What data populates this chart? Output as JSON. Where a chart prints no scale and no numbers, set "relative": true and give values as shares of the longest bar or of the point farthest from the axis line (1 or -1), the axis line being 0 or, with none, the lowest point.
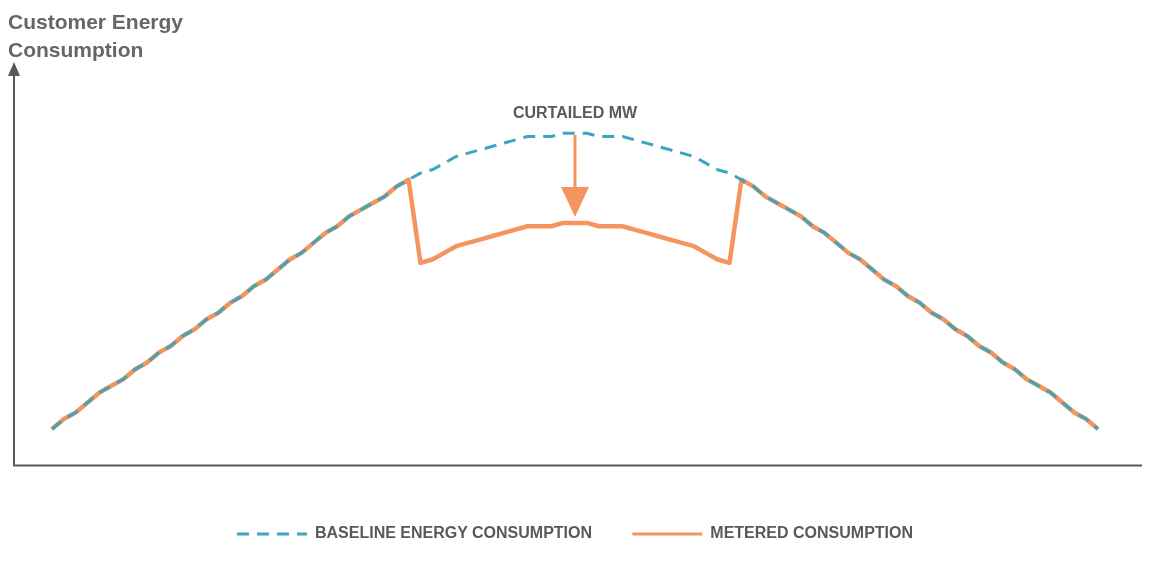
{
  "chart_data": {
    "type": "line",
    "relative": true,
    "ylabel": "Customer Energy Consumption",
    "legend": "bottom",
    "marker": "none",
    "grid": false,
    "annotations": [
      "CURTAILED MW"
    ],
    "categories": [
      null,
      null,
      null,
      null,
      null,
      null,
      null,
      null,
      null,
      null,
      null,
      null,
      null,
      null,
      null,
      null,
      null,
      null,
      null,
      null,
      null,
      null,
      null,
      null,
      null,
      null,
      null,
      null,
      null,
      null,
      null,
      null,
      null,
      null,
      null,
      null,
      null,
      null,
      null,
      null,
      null,
      null,
      null,
      null,
      null,
      null,
      null,
      null,
      null,
      null,
      null,
      null,
      null,
      null,
      null,
      null,
      null,
      null,
      null,
      null,
      null,
      null,
      null,
      null,
      null,
      null,
      null,
      null,
      null,
      null,
      null,
      null,
      null,
      null,
      null,
      null,
      null,
      null,
      null,
      null,
      null,
      null,
      null,
      null,
      null,
      null,
      null,
      null,
      null
    ],
    "series": [
      {
        "name": "BASELINE ENERGY CONSUMPTION",
        "color": "#3aa6bf",
        "line_style": "dashed",
        "values": [
          0.11,
          0.14,
          0.16,
          0.19,
          0.22,
          0.24,
          0.26,
          0.29,
          0.31,
          0.34,
          0.36,
          0.39,
          0.41,
          0.44,
          0.46,
          0.49,
          0.51,
          0.54,
          0.56,
          0.59,
          0.62,
          0.64,
          0.67,
          0.7,
          0.72,
          0.75,
          0.77,
          0.79,
          0.81,
          0.84,
          0.86,
          0.88,
          0.89,
          0.91,
          0.93,
          0.94,
          0.95,
          0.96,
          0.97,
          0.98,
          0.99,
          0.99,
          0.99,
          1,
          1,
          1,
          0.99,
          0.99,
          0.99,
          0.98,
          0.97,
          0.96,
          0.95,
          0.94,
          0.93,
          0.91,
          0.89,
          0.88,
          0.86,
          0.84,
          0.81,
          0.79,
          0.77,
          0.75,
          0.72,
          0.7,
          0.67,
          0.64,
          0.62,
          0.59,
          0.56,
          0.54,
          0.51,
          0.49,
          0.46,
          0.44,
          0.41,
          0.39,
          0.36,
          0.34,
          0.31,
          0.29,
          0.26,
          0.24,
          0.22,
          0.19,
          0.16,
          0.14,
          0.11
        ]
      },
      {
        "name": "METERED CONSUMPTION",
        "color": "#f4955f",
        "line_style": "solid",
        "values": [
          0.11,
          0.14,
          0.16,
          0.19,
          0.22,
          0.24,
          0.26,
          0.29,
          0.31,
          0.34,
          0.36,
          0.39,
          0.41,
          0.44,
          0.46,
          0.49,
          0.51,
          0.54,
          0.56,
          0.59,
          0.62,
          0.64,
          0.67,
          0.7,
          0.72,
          0.75,
          0.77,
          0.79,
          0.81,
          0.84,
          0.86,
          0.61,
          0.62,
          0.64,
          0.66,
          0.67,
          0.68,
          0.69,
          0.7,
          0.71,
          0.72,
          0.72,
          0.72,
          0.73,
          0.73,
          0.73,
          0.72,
          0.72,
          0.72,
          0.71,
          0.7,
          0.69,
          0.68,
          0.67,
          0.66,
          0.64,
          0.62,
          0.61,
          0.86,
          0.84,
          0.81,
          0.79,
          0.77,
          0.75,
          0.72,
          0.7,
          0.67,
          0.64,
          0.62,
          0.59,
          0.56,
          0.54,
          0.51,
          0.49,
          0.46,
          0.44,
          0.41,
          0.39,
          0.36,
          0.34,
          0.31,
          0.29,
          0.26,
          0.24,
          0.22,
          0.19,
          0.16,
          0.14,
          0.11
        ]
      }
    ]
  }
}
